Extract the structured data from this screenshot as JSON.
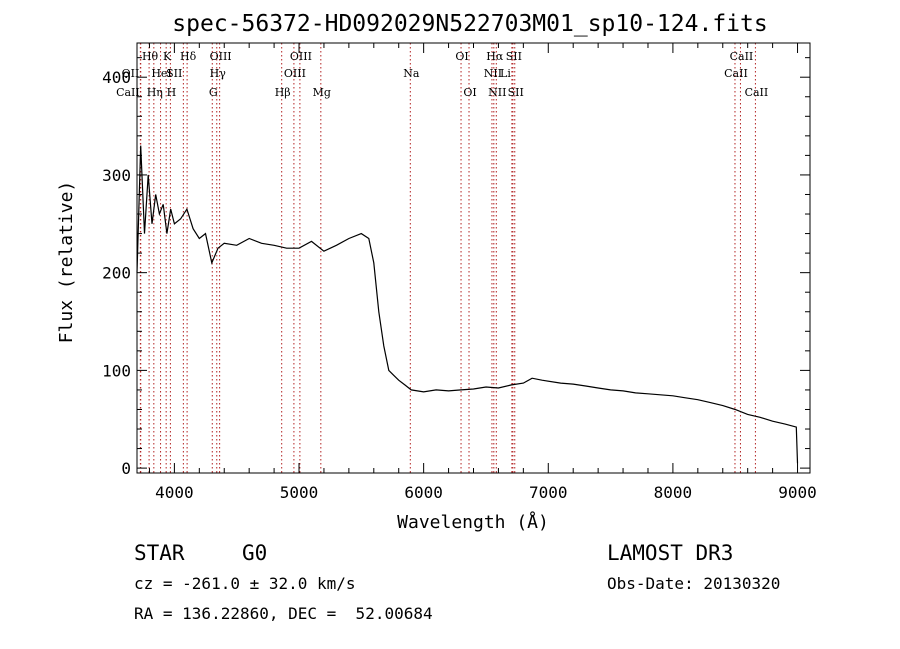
{
  "chart_data": {
    "type": "line",
    "title": "spec-56372-HD092029N522703M01_sp10-124.fits",
    "xlabel": "Wavelength (Å)",
    "ylabel": "Flux (relative)",
    "xlim": [
      3700,
      9100
    ],
    "ylim": [
      -5,
      435
    ],
    "x_ticks": [
      4000,
      5000,
      6000,
      7000,
      8000,
      9000
    ],
    "y_ticks": [
      0,
      100,
      200,
      300,
      400
    ],
    "grid": false,
    "line_color": "#000000",
    "marker_color": "#b22222",
    "series": [
      {
        "x": [
          3700,
          3730,
          3760,
          3790,
          3820,
          3850,
          3880,
          3910,
          3940,
          3970,
          4000,
          4050,
          4100,
          4150,
          4200,
          4250,
          4300,
          4350,
          4400,
          4500,
          4600,
          4700,
          4800,
          4900,
          5000,
          5100,
          5200,
          5300,
          5400,
          5500,
          5560,
          5600,
          5640,
          5680,
          5720,
          5760,
          5800,
          5850,
          5900,
          6000,
          6100,
          6200,
          6300,
          6400,
          6500,
          6600,
          6700,
          6800,
          6870,
          6950,
          7100,
          7200,
          7300,
          7400,
          7500,
          7600,
          7700,
          7800,
          7900,
          8000,
          8100,
          8200,
          8300,
          8400,
          8500,
          8600,
          8700,
          8800,
          8900,
          8990,
          9000
        ],
        "y": [
          200,
          330,
          240,
          300,
          250,
          280,
          260,
          270,
          240,
          265,
          250,
          255,
          265,
          245,
          235,
          240,
          210,
          225,
          230,
          228,
          235,
          230,
          228,
          225,
          225,
          232,
          222,
          228,
          235,
          240,
          235,
          210,
          160,
          125,
          100,
          95,
          90,
          85,
          80,
          78,
          80,
          79,
          80,
          81,
          83,
          82,
          85,
          87,
          92,
          90,
          87,
          86,
          84,
          82,
          80,
          79,
          77,
          76,
          75,
          74,
          72,
          70,
          67,
          64,
          60,
          55,
          52,
          48,
          45,
          42,
          5
        ]
      }
    ],
    "lines": [
      {
        "name": "OII",
        "wavelength": 3727,
        "row": 1,
        "side": "right"
      },
      {
        "name": "CaII",
        "wavelength": 3730,
        "row": 2,
        "side": "right"
      },
      {
        "name": "Hθ",
        "wavelength": 3797,
        "row": 0,
        "side": "left"
      },
      {
        "name": "Hη",
        "wavelength": 3835,
        "row": 2,
        "side": "left"
      },
      {
        "name": "HeI",
        "wavelength": 3889,
        "row": 1,
        "side": "left"
      },
      {
        "name": "K",
        "wavelength": 3934,
        "row": 0,
        "side": "left"
      },
      {
        "name": "H",
        "wavelength": 3968,
        "row": 2,
        "side": "left"
      },
      {
        "name": "SII",
        "wavelength": 4072,
        "row": 1,
        "side": "right"
      },
      {
        "name": "Hδ",
        "wavelength": 4102,
        "row": 0,
        "side": "left"
      },
      {
        "name": "G",
        "wavelength": 4304,
        "row": 2,
        "side": "left"
      },
      {
        "name": "Hγ",
        "wavelength": 4340,
        "row": 1,
        "side": "left"
      },
      {
        "name": "OIII",
        "wavelength": 4363,
        "row": 0,
        "side": "left"
      },
      {
        "name": "Hβ",
        "wavelength": 4861,
        "row": 2,
        "side": "left"
      },
      {
        "name": "OIII",
        "wavelength": 4959,
        "row": 1,
        "side": "left"
      },
      {
        "name": "OIII",
        "wavelength": 5007,
        "row": 0,
        "side": "left"
      },
      {
        "name": "Mg",
        "wavelength": 5175,
        "row": 2,
        "side": "left"
      },
      {
        "name": "Na",
        "wavelength": 5893,
        "row": 1,
        "side": "left"
      },
      {
        "name": "OI",
        "wavelength": 6300,
        "row": 0,
        "side": "left"
      },
      {
        "name": "OI",
        "wavelength": 6364,
        "row": 2,
        "side": "left"
      },
      {
        "name": "NII",
        "wavelength": 6548,
        "row": 1,
        "side": "left"
      },
      {
        "name": "Hα",
        "wavelength": 6563,
        "row": 0,
        "side": "left"
      },
      {
        "name": "NII",
        "wavelength": 6583,
        "row": 2,
        "side": "left"
      },
      {
        "name": "Li",
        "wavelength": 6708,
        "row": 1,
        "side": "right"
      },
      {
        "name": "SII",
        "wavelength": 6716,
        "row": 0,
        "side": "left"
      },
      {
        "name": "SII",
        "wavelength": 6731,
        "row": 2,
        "side": "left"
      },
      {
        "name": "CaII",
        "wavelength": 8498,
        "row": 1,
        "side": "left"
      },
      {
        "name": "CaII",
        "wavelength": 8542,
        "row": 0,
        "side": "left"
      },
      {
        "name": "CaII",
        "wavelength": 8662,
        "row": 2,
        "side": "left"
      }
    ]
  },
  "info": {
    "object_class": "STAR",
    "subclass": "G0",
    "survey": "LAMOST DR3",
    "redshift": "cz = -261.0 ± 32.0 km/s",
    "obs_date": "Obs-Date: 20130320",
    "coords": "RA = 136.22860, DEC =  52.00684"
  }
}
